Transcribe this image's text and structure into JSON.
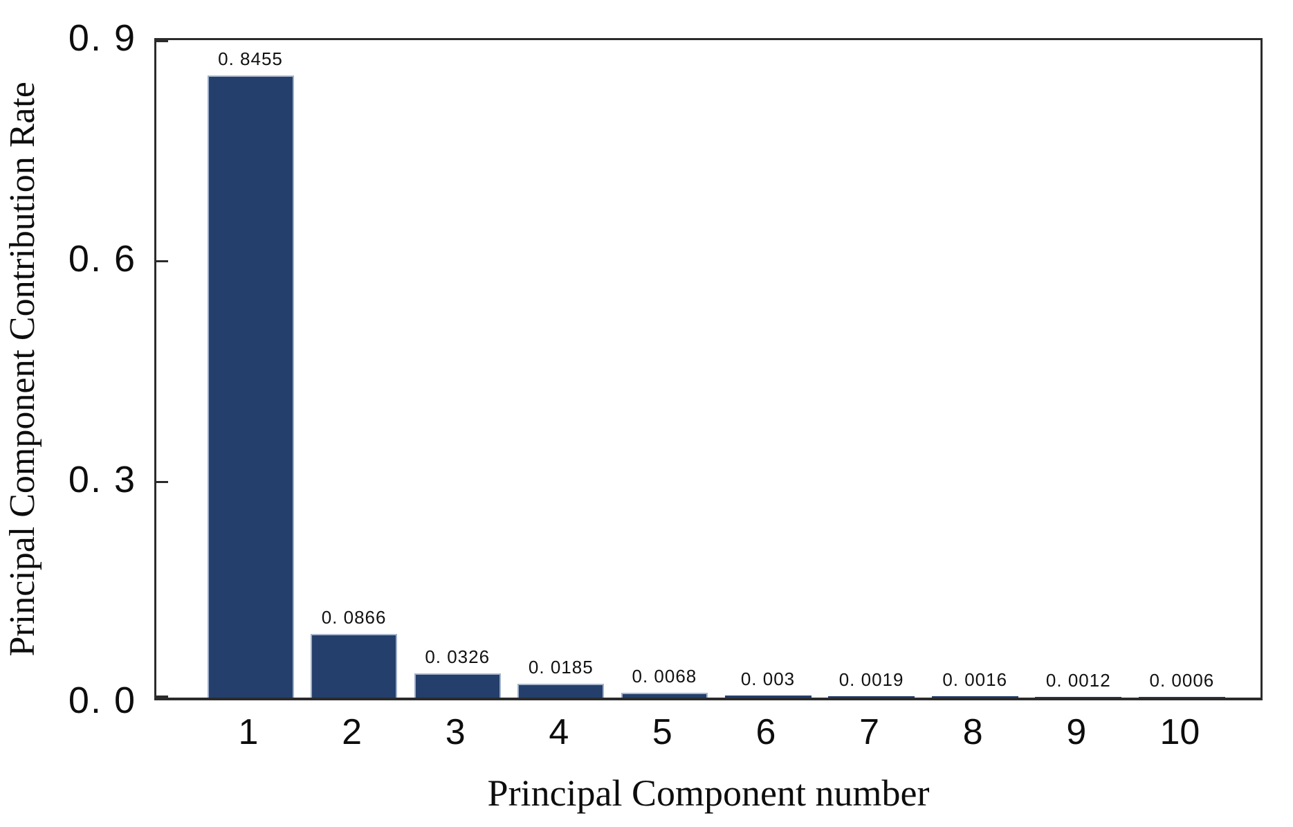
{
  "figure": {
    "background": "#ffffff"
  },
  "chart_data": {
    "type": "bar",
    "title": "",
    "xlabel": "Principal Component number",
    "ylabel": "Principal Component Contribution Rate",
    "categories": [
      "1",
      "2",
      "3",
      "4",
      "5",
      "6",
      "7",
      "8",
      "9",
      "10"
    ],
    "values": [
      0.8455,
      0.0866,
      0.0326,
      0.0185,
      0.0068,
      0.003,
      0.0019,
      0.0016,
      0.0012,
      0.0006
    ],
    "value_labels": [
      "0. 8455",
      "0. 0866",
      "0. 0326",
      "0. 0185",
      "0. 0068",
      "0. 003",
      "0. 0019",
      "0. 0016",
      "0. 0012",
      "0. 0006"
    ],
    "yticks": [
      {
        "value": 0.0,
        "label": "0. 0"
      },
      {
        "value": 0.3,
        "label": "0. 3"
      },
      {
        "value": 0.6,
        "label": "0. 6"
      },
      {
        "value": 0.9,
        "label": "0. 9"
      }
    ],
    "ylim": [
      0,
      0.9
    ],
    "grid": false,
    "legend": null,
    "bar_color": "#243f6b",
    "bar_edge_color": "#9fafc9",
    "axis_color": "#2b2b2b",
    "text_color": "#111111"
  }
}
